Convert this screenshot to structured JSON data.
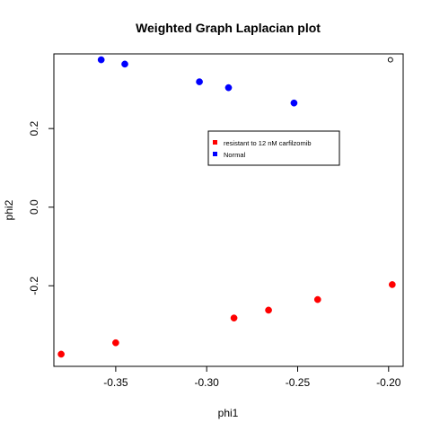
{
  "chart_data": {
    "type": "scatter",
    "title": "Weighted Graph Laplacian plot",
    "xlabel": "phi1",
    "ylabel": "phi2",
    "xlim": [
      -0.384,
      -0.192
    ],
    "ylim": [
      -0.405,
      0.39
    ],
    "xticks": [
      -0.35,
      -0.3,
      -0.25,
      -0.2
    ],
    "xtick_labels": [
      "-0.35",
      "-0.30",
      "-0.25",
      "-0.20"
    ],
    "yticks": [
      -0.2,
      0.0,
      0.2
    ],
    "ytick_labels": [
      "-0.2",
      "0.0",
      "0.2"
    ],
    "grid": false,
    "legend_position": "center-right",
    "series": [
      {
        "name": "resistant to 12 nM carfilzomib",
        "color": "#ff0000",
        "marker": "filled-circle",
        "x": [
          -0.38,
          -0.35,
          -0.285,
          -0.266,
          -0.239,
          -0.198
        ],
        "y": [
          -0.374,
          -0.345,
          -0.282,
          -0.262,
          -0.235,
          -0.197
        ]
      },
      {
        "name": "Normal",
        "color": "#0000ff",
        "marker": "filled-circle",
        "x": [
          -0.358,
          -0.345,
          -0.304,
          -0.288,
          -0.252
        ],
        "y": [
          0.375,
          0.364,
          0.319,
          0.304,
          0.265
        ]
      },
      {
        "name": "",
        "color": "#000000",
        "marker": "open-circle",
        "x": [
          -0.199
        ],
        "y": [
          0.375
        ]
      }
    ]
  }
}
